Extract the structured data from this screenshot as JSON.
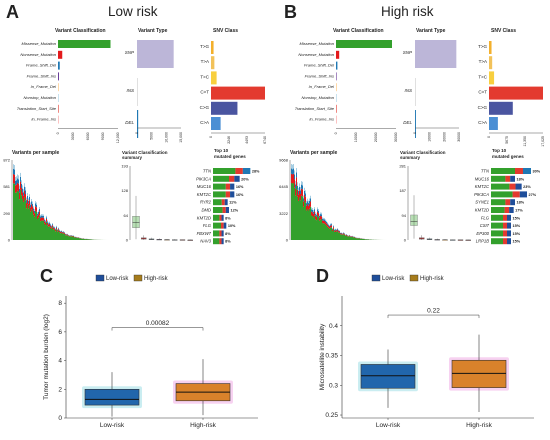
{
  "colors": {
    "missense": "#33a02c",
    "nonsense": "#e31a1c",
    "frameshift_del": "#1f78b4",
    "frameshift_ins": "#6a3d9a",
    "inframe_del": "#fdbf6f",
    "translation": "#a6cee3",
    "snp_box": "#bcb6d8",
    "c_t": "#e33a2f",
    "c_g": "#4a55a0",
    "c_a": "#4b8fd4",
    "t_g": "#f3b02c",
    "t_a": "#f2c25a",
    "t_c": "#f8cf3f",
    "low_box": "#2166ac",
    "high_box": "#d9822b",
    "low_leg": "#1f4e9a",
    "high_leg": "#a67c1c"
  },
  "panels": {
    "A": {
      "letter": "A",
      "title": "Low risk",
      "variant_classification_title": "Variant Classification",
      "variant_type_title": "Variant Type",
      "snv_class_title": "SNV Class",
      "variant_classes": [
        "Missense_Mutation",
        "Nonsense_Mutation",
        "Frame_Shift_Del",
        "Frame_Shift_Ins",
        "In_Frame_Del",
        "Nonstop_Mutation",
        "Translation_Start_Site",
        "In_Frame_Ins"
      ],
      "variant_class_ticks": [
        "0",
        "3000",
        "6000",
        "9000",
        "12,000"
      ],
      "variant_types": [
        "SNP",
        "INS",
        "DEL"
      ],
      "variant_type_ticks": [
        "0",
        "5000",
        "10,000",
        "15,000"
      ],
      "snv_classes": [
        "T>G",
        "T>A",
        "T>C",
        "C>T",
        "C>G",
        "C>A"
      ],
      "snv_ticks": [
        "0",
        "2246",
        "4493",
        "6740"
      ],
      "variants_per_sample_title": "Variants per sample",
      "vps_ticks": [
        "0",
        "290",
        "581",
        "872"
      ],
      "vc_summary_title": "Variant Classification summary",
      "vcs_ticks": [
        "0",
        "64",
        "128",
        "193"
      ],
      "top10_title": "Top 10 mutated genes",
      "top_genes": [
        "TTN",
        "PIK3CA",
        "MUC16",
        "KMT2C",
        "RYR2",
        "DMD",
        "KMT2D",
        "FLG",
        "FBXW7",
        "NAV3"
      ],
      "top_pct": [
        "28%",
        "20%",
        "16%",
        "16%",
        "11%",
        "12%",
        "8%",
        "10%",
        "8%",
        "8%"
      ]
    },
    "B": {
      "letter": "B",
      "title": "High risk",
      "variant_classification_title": "Variant Classification",
      "variant_type_title": "Variant Type",
      "snv_class_title": "SNV Class",
      "variant_classes": [
        "Missense_Mutation",
        "Nonsense_Mutation",
        "Frame_Shift_Del",
        "Frame_Shift_Ins",
        "In_Frame_Del",
        "Nonstop_Mutation",
        "Translation_Start_Site",
        "In_Frame_Ins"
      ],
      "variant_class_ticks": [
        "0",
        "10000",
        "20000",
        "30000"
      ],
      "variant_types": [
        "SNP",
        "INS",
        "DEL"
      ],
      "variant_type_ticks": [
        "0",
        "10000",
        "20000",
        "30000"
      ],
      "snv_classes": [
        "T>G",
        "T>A",
        "T>C",
        "C>T",
        "C>G",
        "C>A"
      ],
      "snv_ticks": [
        "0",
        "5675",
        "11,350",
        "17,025"
      ],
      "variants_per_sample_title": "Variants per sample",
      "vps_ticks": [
        "0",
        "3222",
        "6445",
        "9668"
      ],
      "vc_summary_title": "Variant Classification summary",
      "vcs_ticks": [
        "0",
        "94",
        "187",
        "281"
      ],
      "top10_title": "Top 10 mutated genes",
      "top_genes": [
        "TTN",
        "MUC16",
        "KMT2C",
        "PIK3CA",
        "SYNE1",
        "KMT2D",
        "FLG",
        "CSI7",
        "EP300",
        "LRP1B"
      ],
      "top_pct": [
        "30%",
        "18%",
        "23%",
        "27%",
        "18%",
        "17%",
        "15%",
        "15%",
        "15%",
        "15%"
      ]
    },
    "C": {
      "letter": "C",
      "legend": [
        "Low-risk",
        "High-risk"
      ],
      "ylabel": "Tumor mutation burden (log2)",
      "pvalue": "0.00082"
    },
    "D": {
      "letter": "D",
      "legend": [
        "Low-risk",
        "High-risk"
      ],
      "ylabel": "Microsatellite instability",
      "pvalue": "0.22"
    }
  },
  "chart_data": [
    {
      "type": "bar",
      "panel": "A",
      "name": "Variant Classification",
      "categories": [
        "Missense_Mutation",
        "Nonsense_Mutation",
        "Frame_Shift_Del",
        "Frame_Shift_Ins",
        "In_Frame_Del",
        "Nonstop_Mutation",
        "Translation_Start_Site",
        "In_Frame_Ins"
      ],
      "values": [
        10500,
        850,
        350,
        200,
        60,
        20,
        30,
        10
      ],
      "xlim": [
        0,
        12000
      ]
    },
    {
      "type": "bar",
      "panel": "A",
      "name": "Variant Type",
      "categories": [
        "SNP",
        "INS",
        "DEL"
      ],
      "values": [
        12500,
        80,
        400
      ],
      "xlim": [
        0,
        15000
      ]
    },
    {
      "type": "bar",
      "panel": "A",
      "name": "SNV Class",
      "categories": [
        "T>G",
        "T>A",
        "T>C",
        "C>T",
        "C>G",
        "C>A"
      ],
      "values": [
        320,
        420,
        700,
        6740,
        3300,
        1200
      ],
      "xlim": [
        0,
        6740
      ]
    },
    {
      "type": "box",
      "panel": "A",
      "name": "Variant Classification summary",
      "ylim": [
        0,
        193
      ],
      "boxes": [
        {
          "color": "#33a02c",
          "q1": 32,
          "median": 45,
          "q3": 62,
          "whisker_low": 2,
          "whisker_high": 115
        },
        {
          "color": "#e31a1c",
          "q1": 2,
          "median": 4,
          "q3": 6,
          "whisker_low": 0,
          "whisker_high": 12
        },
        {
          "color": "#1f78b4",
          "q1": 1,
          "median": 2,
          "q3": 3,
          "whisker_low": 0,
          "whisker_high": 6
        },
        {
          "color": "#6a3d9a",
          "q1": 0,
          "median": 1,
          "q3": 2,
          "whisker_low": 0,
          "whisker_high": 4
        },
        {
          "color": "#fdbf6f",
          "q1": 0,
          "median": 1,
          "q3": 1,
          "whisker_low": 0,
          "whisker_high": 2
        },
        {
          "color": "#a6cee3",
          "q1": 0,
          "median": 0,
          "q3": 1,
          "whisker_low": 0,
          "whisker_high": 2
        },
        {
          "color": "#e33a2f",
          "q1": 0,
          "median": 0,
          "q3": 1,
          "whisker_low": 0,
          "whisker_high": 1
        },
        {
          "color": "#fb9a99",
          "q1": 0,
          "median": 0,
          "q3": 0,
          "whisker_low": 0,
          "whisker_high": 1
        }
      ]
    },
    {
      "type": "bar",
      "panel": "A",
      "name": "Top 10 mutated genes",
      "categories": [
        "TTN",
        "PIK3CA",
        "MUC16",
        "KMT2C",
        "RYR2",
        "DMD",
        "KMT2D",
        "FLG",
        "FBXW7",
        "NAV3"
      ],
      "values": [
        28,
        20,
        16,
        16,
        11,
        12,
        8,
        10,
        8,
        8
      ]
    },
    {
      "type": "bar",
      "panel": "B",
      "name": "Variant Classification",
      "categories": [
        "Missense_Mutation",
        "Nonsense_Mutation",
        "Frame_Shift_Del",
        "Frame_Shift_Ins",
        "In_Frame_Del",
        "Nonstop_Mutation",
        "Translation_Start_Site",
        "In_Frame_Ins"
      ],
      "values": [
        28000,
        1600,
        700,
        300,
        80,
        40,
        50,
        20
      ],
      "xlim": [
        0,
        30000
      ]
    },
    {
      "type": "bar",
      "panel": "B",
      "name": "Variant Type",
      "categories": [
        "SNP",
        "INS",
        "DEL"
      ],
      "values": [
        31000,
        150,
        700
      ],
      "xlim": [
        0,
        33000
      ]
    },
    {
      "type": "bar",
      "panel": "B",
      "name": "SNV Class",
      "categories": [
        "T>G",
        "T>A",
        "T>C",
        "C>T",
        "C>G",
        "C>A"
      ],
      "values": [
        800,
        1000,
        1600,
        17025,
        7500,
        2800
      ],
      "xlim": [
        0,
        17025
      ]
    },
    {
      "type": "box",
      "panel": "B",
      "name": "Variant Classification summary",
      "ylim": [
        0,
        281
      ],
      "boxes": [
        {
          "color": "#33a02c",
          "q1": 55,
          "median": 70,
          "q3": 95,
          "whisker_low": 5,
          "whisker_high": 170
        },
        {
          "color": "#e31a1c",
          "q1": 3,
          "median": 5,
          "q3": 9,
          "whisker_low": 0,
          "whisker_high": 18
        },
        {
          "color": "#1f78b4",
          "q1": 1,
          "median": 3,
          "q3": 5,
          "whisker_low": 0,
          "whisker_high": 9
        },
        {
          "color": "#6a3d9a",
          "q1": 0,
          "median": 1,
          "q3": 2,
          "whisker_low": 0,
          "whisker_high": 5
        },
        {
          "color": "#fdbf6f",
          "q1": 0,
          "median": 1,
          "q3": 1,
          "whisker_low": 0,
          "whisker_high": 3
        },
        {
          "color": "#a6cee3",
          "q1": 0,
          "median": 0,
          "q3": 1,
          "whisker_low": 0,
          "whisker_high": 2
        },
        {
          "color": "#e33a2f",
          "q1": 0,
          "median": 0,
          "q3": 1,
          "whisker_low": 0,
          "whisker_high": 1
        },
        {
          "color": "#fb9a99",
          "q1": 0,
          "median": 0,
          "q3": 0,
          "whisker_low": 0,
          "whisker_high": 1
        }
      ]
    },
    {
      "type": "bar",
      "panel": "B",
      "name": "Top 10 mutated genes",
      "categories": [
        "TTN",
        "MUC16",
        "KMT2C",
        "PIK3CA",
        "SYNE1",
        "KMT2D",
        "FLG",
        "CSI7",
        "EP300",
        "LRP1B"
      ],
      "values": [
        30,
        18,
        23,
        27,
        18,
        17,
        15,
        15,
        15,
        15
      ]
    },
    {
      "type": "box",
      "panel": "C",
      "ylabel": "Tumor mutation burden (log2)",
      "categories": [
        "Low-risk",
        "High-risk"
      ],
      "ylim": [
        0,
        8.5
      ],
      "yticks": [
        0,
        2,
        4,
        6,
        8
      ],
      "boxes": [
        {
          "name": "Low-risk",
          "whisker_low": 0.1,
          "q1": 0.9,
          "median": 1.3,
          "q3": 2.0,
          "whisker_high": 3.2
        },
        {
          "name": "High-risk",
          "whisker_low": 0.2,
          "q1": 1.2,
          "median": 1.8,
          "q3": 2.4,
          "whisker_high": 4.1
        }
      ],
      "annotation": "0.00082"
    },
    {
      "type": "box",
      "panel": "D",
      "ylabel": "Microsatellite instability",
      "categories": [
        "Low-risk",
        "High-risk"
      ],
      "ylim": [
        0.245,
        0.45
      ],
      "yticks": [
        0.25,
        0.3,
        0.35,
        0.4
      ],
      "boxes": [
        {
          "name": "Low-risk",
          "whisker_low": 0.262,
          "q1": 0.295,
          "median": 0.316,
          "q3": 0.335,
          "whisker_high": 0.36
        },
        {
          "name": "High-risk",
          "whisker_low": 0.255,
          "q1": 0.296,
          "median": 0.32,
          "q3": 0.342,
          "whisker_high": 0.385
        }
      ],
      "annotation": "0.22"
    }
  ]
}
